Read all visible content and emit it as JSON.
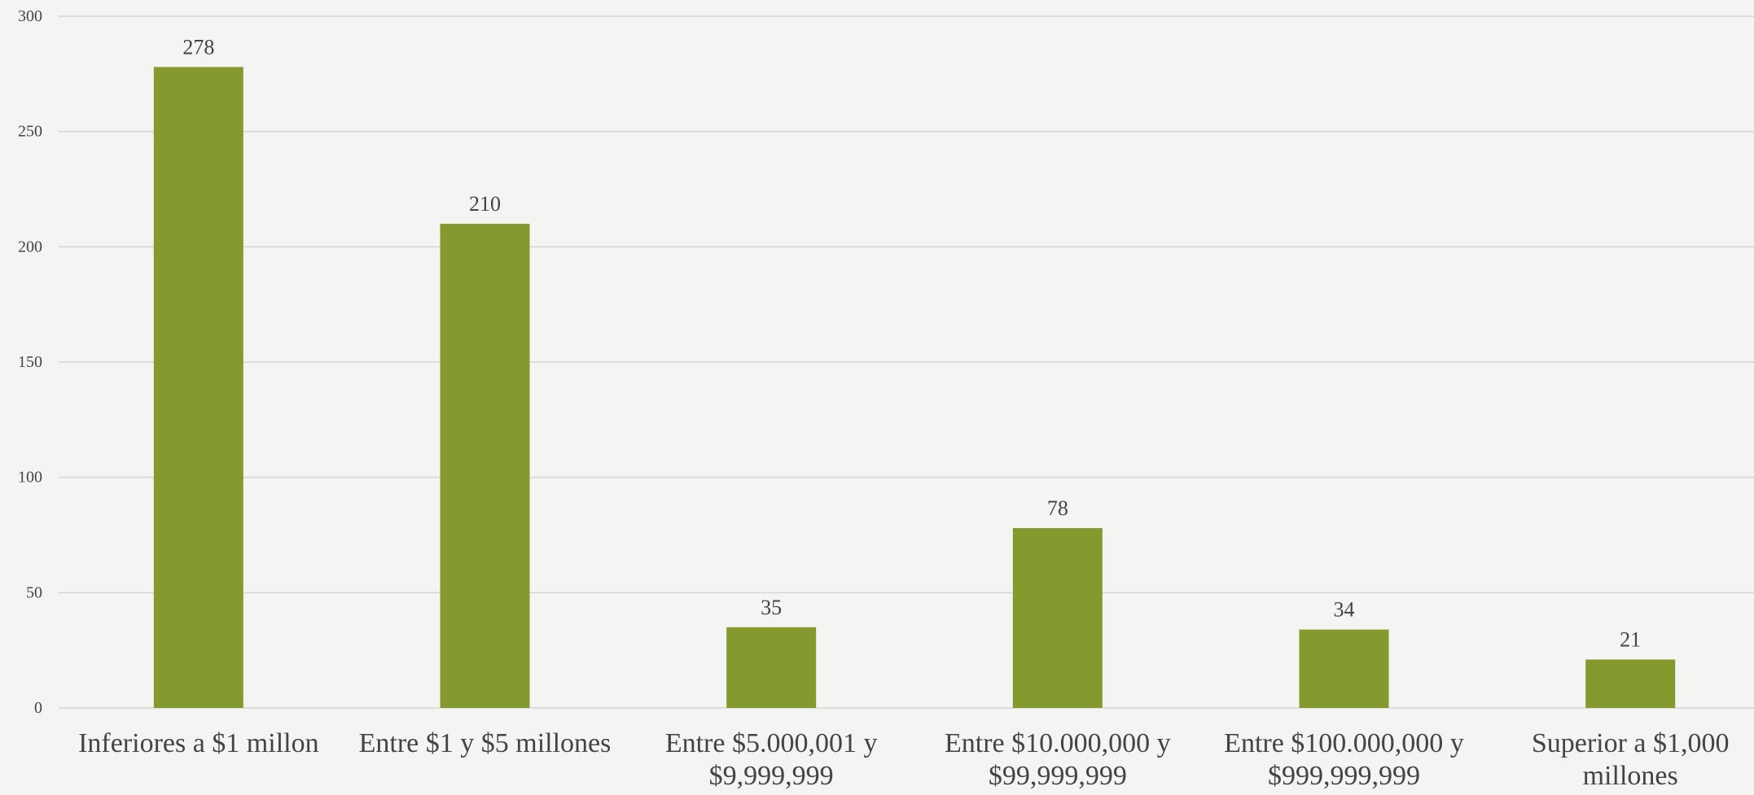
{
  "chart_data": {
    "type": "bar",
    "title": "",
    "xlabel": "",
    "ylabel": "",
    "categories": [
      [
        "Inferiores a $1 millon"
      ],
      [
        "Entre $1 y $5 millones"
      ],
      [
        "Entre $5.000,001 y",
        "$9,999,999"
      ],
      [
        "Entre $10.000,000 y",
        "$99,999,999"
      ],
      [
        "Entre $100.000,000 y",
        "$999,999,999"
      ],
      [
        "Superior a $1,000",
        "millones"
      ]
    ],
    "values": [
      278,
      210,
      35,
      78,
      34,
      21
    ],
    "ylim": [
      0,
      300
    ],
    "yticks": [
      0,
      50,
      100,
      150,
      200,
      250,
      300
    ],
    "grid": true,
    "legend": "none",
    "bar_color": "#859a2e",
    "grid_color": "#d4d4d4",
    "text_color": "#444444"
  }
}
